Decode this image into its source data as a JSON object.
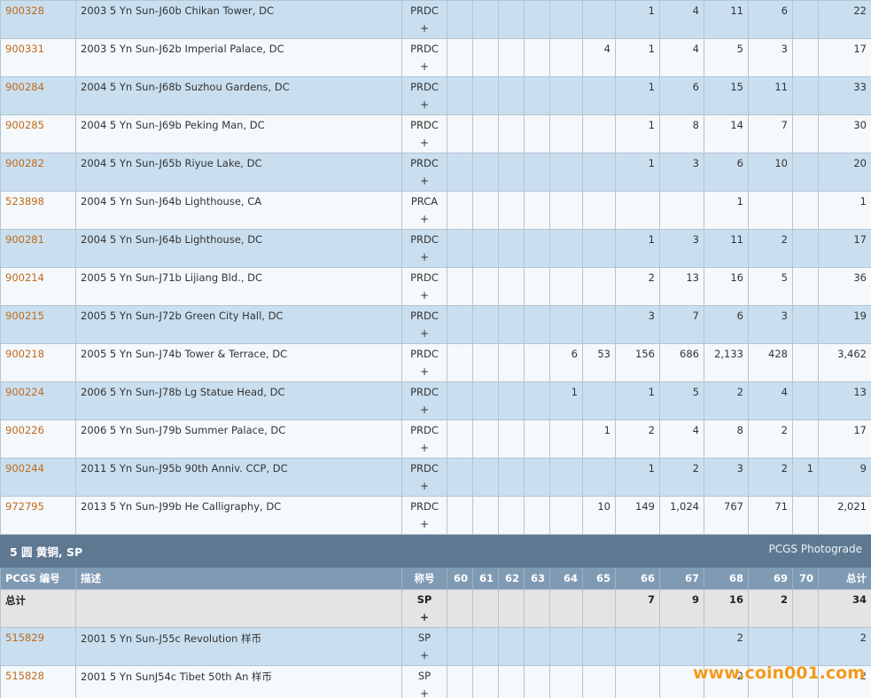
{
  "columns": {
    "pcgs_no": "PCGS 编号",
    "desc": "描述",
    "designation": "称号",
    "grades": [
      "60",
      "61",
      "62",
      "63",
      "64",
      "65",
      "66",
      "67",
      "68",
      "69",
      "70"
    ],
    "total": "总计"
  },
  "upper_rows": [
    {
      "id": "900328",
      "desc": "2003 5 Yn Sun-J60b Chikan Tower, DC",
      "des": "PRDC",
      "plus": "+",
      "g": [
        "",
        "",
        "",
        "",
        "",
        "",
        "1",
        "4",
        "11",
        "6",
        ""
      ],
      "total": "22"
    },
    {
      "id": "900331",
      "desc": "2003 5 Yn Sun-J62b Imperial Palace, DC",
      "des": "PRDC",
      "plus": "+",
      "g": [
        "",
        "",
        "",
        "",
        "",
        "4",
        "1",
        "4",
        "5",
        "3",
        ""
      ],
      "total": "17"
    },
    {
      "id": "900284",
      "desc": "2004 5 Yn Sun-J68b Suzhou Gardens, DC",
      "des": "PRDC",
      "plus": "+",
      "g": [
        "",
        "",
        "",
        "",
        "",
        "",
        "1",
        "6",
        "15",
        "11",
        ""
      ],
      "total": "33"
    },
    {
      "id": "900285",
      "desc": "2004 5 Yn Sun-J69b Peking Man, DC",
      "des": "PRDC",
      "plus": "+",
      "g": [
        "",
        "",
        "",
        "",
        "",
        "",
        "1",
        "8",
        "14",
        "7",
        ""
      ],
      "total": "30"
    },
    {
      "id": "900282",
      "desc": "2004 5 Yn Sun-J65b Riyue Lake, DC",
      "des": "PRDC",
      "plus": "+",
      "g": [
        "",
        "",
        "",
        "",
        "",
        "",
        "1",
        "3",
        "6",
        "10",
        ""
      ],
      "total": "20"
    },
    {
      "id": "523898",
      "desc": "2004 5 Yn Sun-J64b Lighthouse, CA",
      "des": "PRCA",
      "plus": "+",
      "g": [
        "",
        "",
        "",
        "",
        "",
        "",
        "",
        "",
        "1",
        "",
        ""
      ],
      "total": "1"
    },
    {
      "id": "900281",
      "desc": "2004 5 Yn Sun-J64b Lighthouse, DC",
      "des": "PRDC",
      "plus": "+",
      "g": [
        "",
        "",
        "",
        "",
        "",
        "",
        "1",
        "3",
        "11",
        "2",
        ""
      ],
      "total": "17"
    },
    {
      "id": "900214",
      "desc": "2005 5 Yn Sun-J71b Lijiang Bld., DC",
      "des": "PRDC",
      "plus": "+",
      "g": [
        "",
        "",
        "",
        "",
        "",
        "",
        "2",
        "13",
        "16",
        "5",
        ""
      ],
      "total": "36"
    },
    {
      "id": "900215",
      "desc": "2005 5 Yn Sun-J72b Green City Hall, DC",
      "des": "PRDC",
      "plus": "+",
      "g": [
        "",
        "",
        "",
        "",
        "",
        "",
        "3",
        "7",
        "6",
        "3",
        ""
      ],
      "total": "19"
    },
    {
      "id": "900218",
      "desc": "2005 5 Yn Sun-J74b Tower & Terrace, DC",
      "des": "PRDC",
      "plus": "+",
      "g": [
        "",
        "",
        "",
        "",
        "6",
        "53",
        "156",
        "686",
        "2,133",
        "428",
        ""
      ],
      "total": "3,462"
    },
    {
      "id": "900224",
      "desc": "2006 5 Yn Sun-J78b Lg Statue Head, DC",
      "des": "PRDC",
      "plus": "+",
      "g": [
        "",
        "",
        "",
        "",
        "1",
        "",
        "1",
        "5",
        "2",
        "4",
        ""
      ],
      "total": "13"
    },
    {
      "id": "900226",
      "desc": "2006 5 Yn Sun-J79b Summer Palace, DC",
      "des": "PRDC",
      "plus": "+",
      "g": [
        "",
        "",
        "",
        "",
        "",
        "1",
        "2",
        "4",
        "8",
        "2",
        ""
      ],
      "total": "17"
    },
    {
      "id": "900244",
      "desc": "2011 5 Yn Sun-J95b 90th Anniv. CCP, DC",
      "des": "PRDC",
      "plus": "+",
      "g": [
        "",
        "",
        "",
        "",
        "",
        "",
        "1",
        "2",
        "3",
        "2",
        "1"
      ],
      "total": "9"
    },
    {
      "id": "972795",
      "desc": "2013 5 Yn Sun-J99b He Calligraphy, DC",
      "des": "PRDC",
      "plus": "+",
      "g": [
        "",
        "",
        "",
        "",
        "",
        "10",
        "149",
        "1,024",
        "767",
        "71",
        ""
      ],
      "total": "2,021"
    }
  ],
  "section": {
    "title": "5 圆 黄铜, SP",
    "photograde": "PCGS Photograde"
  },
  "total_row": {
    "label": "总计",
    "des": "SP",
    "plus": "+",
    "g": [
      "",
      "",
      "",
      "",
      "",
      "",
      "7",
      "9",
      "16",
      "2",
      ""
    ],
    "total": "34"
  },
  "lower_rows": [
    {
      "id": "515829",
      "desc": "2001 5 Yn Sun-J55c Revolution 样币",
      "des": "SP",
      "plus": "+",
      "g": [
        "",
        "",
        "",
        "",
        "",
        "",
        "",
        "",
        "2",
        "",
        ""
      ],
      "total": "2"
    },
    {
      "id": "515828",
      "desc": "2001 5 Yn SunJ54c Tibet 50th An 样币",
      "des": "SP",
      "plus": "+",
      "g": [
        "",
        "",
        "",
        "",
        "",
        "",
        "",
        "",
        "2",
        "",
        ""
      ],
      "total": "2"
    }
  ],
  "watermark": "www.coin001.com"
}
